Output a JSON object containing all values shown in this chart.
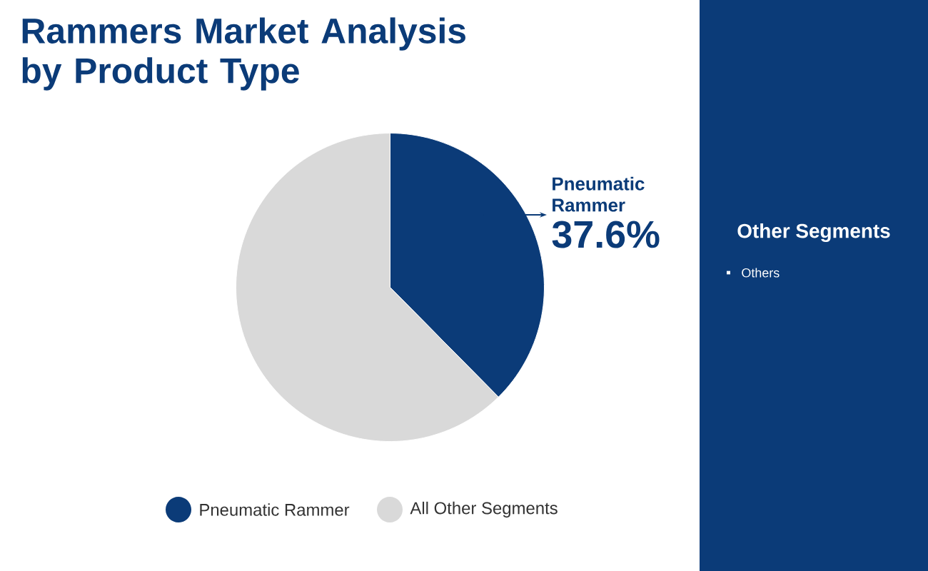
{
  "chart_data": {
    "type": "pie",
    "title": "Rammers Market Analysis by Product Type",
    "categories": [
      "Pneumatic Rammer",
      "All Other Segments"
    ],
    "values": [
      37.6,
      62.4
    ],
    "colors": [
      "#0b3b78",
      "#d9d9d9"
    ],
    "value_labels": [
      "37.6%",
      null
    ],
    "legend": "bottom",
    "annotations": [
      "Other Segments",
      "Others"
    ]
  }
}
